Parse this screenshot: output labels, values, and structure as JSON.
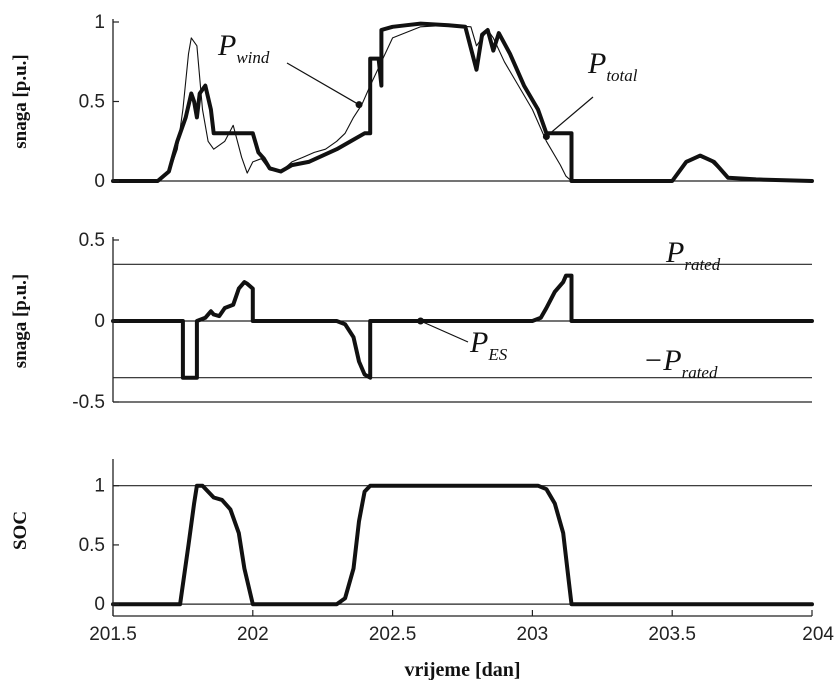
{
  "chart_data": [
    {
      "type": "line",
      "ylabel": "snaga [p.u.]",
      "xlim": [
        201.5,
        204
      ],
      "ylim": [
        0,
        1
      ],
      "yticks": [
        "0",
        "0.5",
        "1"
      ],
      "series": [
        {
          "name": "P_wind",
          "x": [
            201.5,
            201.66,
            201.7,
            201.73,
            201.75,
            201.77,
            201.78,
            201.8,
            201.82,
            201.84,
            201.86,
            201.9,
            201.93,
            201.96,
            201.98,
            202.0,
            202.03,
            202.06,
            202.1,
            202.14,
            202.18,
            202.22,
            202.26,
            202.3,
            202.33,
            202.36,
            202.39,
            202.42,
            202.46,
            202.5,
            202.6,
            202.7,
            202.78,
            202.8,
            202.84,
            202.86,
            202.9,
            202.95,
            203.0,
            203.05,
            203.1,
            203.12,
            203.14,
            203.2,
            203.5,
            203.55,
            203.6,
            203.64,
            203.7,
            203.8,
            204.0
          ],
          "y": [
            0,
            0,
            0.05,
            0.2,
            0.45,
            0.8,
            0.9,
            0.85,
            0.45,
            0.25,
            0.2,
            0.25,
            0.35,
            0.15,
            0.05,
            0.12,
            0.14,
            0.07,
            0.06,
            0.12,
            0.15,
            0.18,
            0.2,
            0.25,
            0.3,
            0.4,
            0.48,
            0.6,
            0.75,
            0.9,
            0.97,
            0.98,
            0.97,
            0.85,
            0.95,
            0.9,
            0.75,
            0.6,
            0.45,
            0.25,
            0.1,
            0.03,
            0.0,
            0.0,
            0.0,
            0.13,
            0.15,
            0.12,
            0.02,
            0.01,
            0.0
          ]
        },
        {
          "name": "P_total",
          "x": [
            201.5,
            201.66,
            201.7,
            201.73,
            201.76,
            201.78,
            201.79,
            201.8,
            201.81,
            201.83,
            201.85,
            201.86,
            202.0,
            202.02,
            202.04,
            202.06,
            202.1,
            202.14,
            202.2,
            202.25,
            202.3,
            202.35,
            202.4,
            202.42,
            202.42,
            202.45,
            202.46,
            202.46,
            202.5,
            202.55,
            202.6,
            202.7,
            202.76,
            202.8,
            202.82,
            202.84,
            202.86,
            202.88,
            202.92,
            202.97,
            203.02,
            203.05,
            203.14,
            203.14,
            203.5,
            203.55,
            203.6,
            203.65,
            203.7,
            203.8,
            204.0
          ],
          "y": [
            0,
            0,
            0.06,
            0.25,
            0.4,
            0.55,
            0.5,
            0.4,
            0.55,
            0.6,
            0.45,
            0.3,
            0.3,
            0.18,
            0.14,
            0.08,
            0.06,
            0.1,
            0.12,
            0.16,
            0.2,
            0.25,
            0.3,
            0.3,
            0.77,
            0.77,
            0.6,
            0.95,
            0.97,
            0.98,
            0.99,
            0.98,
            0.97,
            0.7,
            0.92,
            0.95,
            0.82,
            0.93,
            0.8,
            0.6,
            0.45,
            0.3,
            0.3,
            0.0,
            0.0,
            0.12,
            0.16,
            0.12,
            0.02,
            0.01,
            0.0
          ]
        }
      ],
      "annotations": [
        {
          "main": "P",
          "sub": "wind"
        },
        {
          "main": "P",
          "sub": "total"
        }
      ]
    },
    {
      "type": "line",
      "ylabel": "snaga [p.u.]",
      "xlim": [
        201.5,
        204
      ],
      "ylim": [
        -0.5,
        0.5
      ],
      "yticks": [
        "-0.5",
        "0",
        "0.5"
      ],
      "reference_lines": [
        0.35,
        -0.35
      ],
      "series": [
        {
          "name": "P_ES",
          "x": [
            201.5,
            201.75,
            201.75,
            201.8,
            201.8,
            201.83,
            201.85,
            201.86,
            201.88,
            201.9,
            201.93,
            201.95,
            201.97,
            201.98,
            202.0,
            202.0,
            202.3,
            202.33,
            202.36,
            202.38,
            202.4,
            202.42,
            202.42,
            203.0,
            203.03,
            203.05,
            203.08,
            203.11,
            203.12,
            203.14,
            203.14,
            204.0
          ],
          "y": [
            0,
            0,
            -0.35,
            -0.35,
            0,
            0.02,
            0.06,
            0.04,
            0.03,
            0.08,
            0.1,
            0.2,
            0.24,
            0.23,
            0.2,
            0,
            0,
            -0.02,
            -0.1,
            -0.25,
            -0.33,
            -0.35,
            0,
            0,
            0.02,
            0.08,
            0.18,
            0.24,
            0.28,
            0.28,
            0,
            0
          ]
        }
      ],
      "annotations": [
        {
          "main": "P",
          "sub": "rated"
        },
        {
          "main": "P",
          "sub": "ES"
        },
        {
          "main": "−P",
          "sub": "rated"
        }
      ]
    },
    {
      "type": "line",
      "ylabel": "SOC",
      "xlabel": "vrijeme [dan]",
      "xlim": [
        201.5,
        204
      ],
      "ylim": [
        -0.1,
        1.2
      ],
      "yticks": [
        "0",
        "0.5",
        "1"
      ],
      "xticks": [
        "201.5",
        "202",
        "202.5",
        "203",
        "203.5",
        "204"
      ],
      "reference_lines": [
        1.0
      ],
      "series": [
        {
          "name": "SOC",
          "x": [
            201.5,
            201.74,
            201.77,
            201.79,
            201.8,
            201.82,
            201.84,
            201.86,
            201.89,
            201.92,
            201.95,
            201.97,
            202.0,
            202.3,
            202.33,
            202.36,
            202.38,
            202.4,
            202.42,
            203.02,
            203.05,
            203.08,
            203.11,
            203.13,
            203.14,
            204.0
          ],
          "y": [
            0,
            0,
            0.5,
            0.85,
            1.0,
            1.0,
            0.95,
            0.9,
            0.88,
            0.8,
            0.6,
            0.3,
            0,
            0,
            0.05,
            0.3,
            0.7,
            0.95,
            1.0,
            1.0,
            0.97,
            0.85,
            0.6,
            0.2,
            0,
            0
          ]
        }
      ]
    }
  ]
}
